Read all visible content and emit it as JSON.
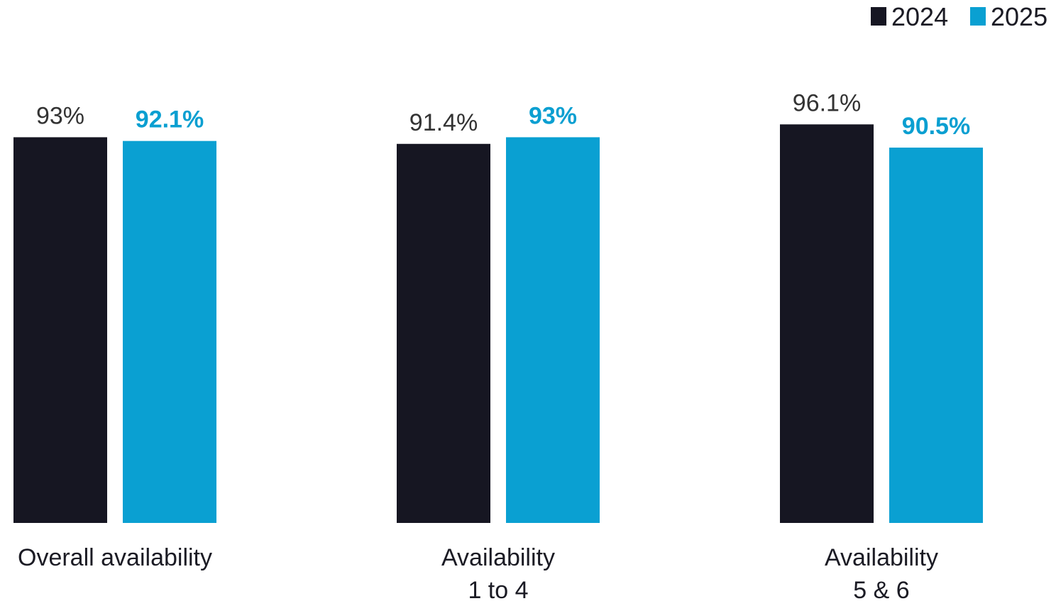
{
  "chart_data": {
    "type": "bar",
    "categories": [
      [
        "Overall availability"
      ],
      [
        "Availability",
        "1 to 4"
      ],
      [
        "Availability",
        "5 & 6"
      ]
    ],
    "series": [
      {
        "name": "2024",
        "color": "#161622",
        "label_color": "#333333",
        "label_weight": "normal",
        "values": [
          93,
          91.4,
          96.1
        ],
        "labels": [
          "93%",
          "91.4%",
          "96.1%"
        ]
      },
      {
        "name": "2025",
        "color": "#0aa0d2",
        "label_color": "#0a9fd1",
        "label_weight": "bold",
        "values": [
          92.1,
          93,
          90.5
        ],
        "labels": [
          "92.1%",
          "93%",
          "90.5%"
        ]
      }
    ],
    "title": "",
    "xlabel": "",
    "ylabel": "",
    "legend": "top-right",
    "grid": false
  }
}
